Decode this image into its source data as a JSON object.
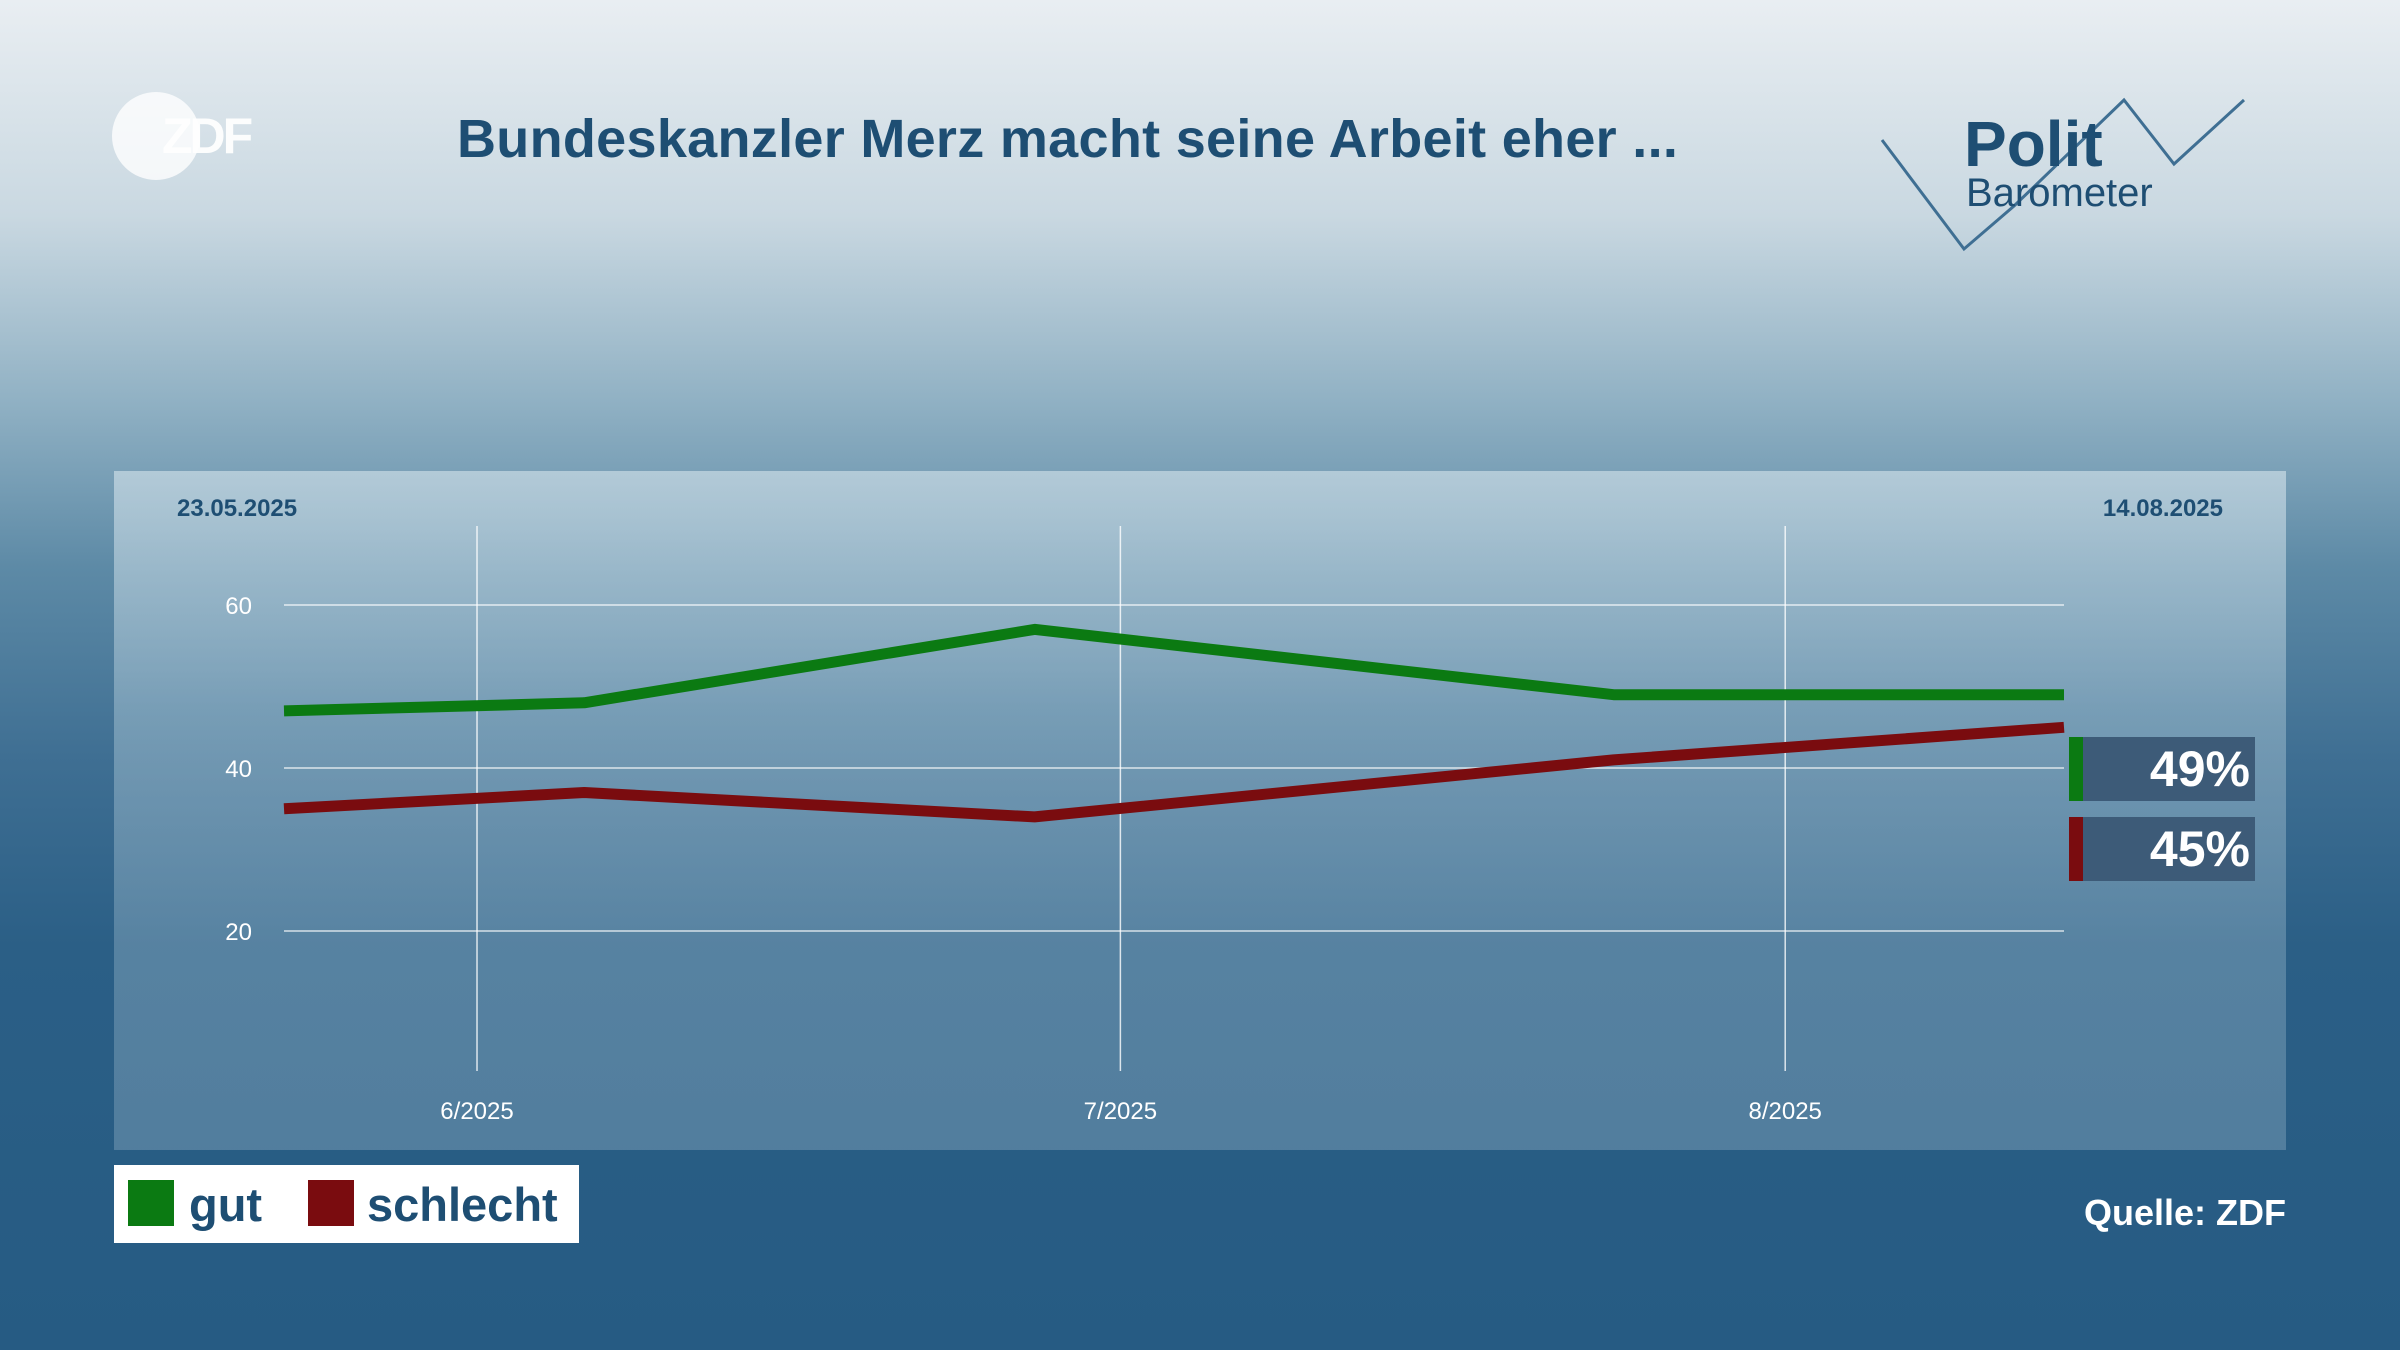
{
  "header": {
    "title": "Bundeskanzler Merz macht seine Arbeit eher ...",
    "zdf_logo_text": "ZDF",
    "polit_logo": {
      "word1": "Polit",
      "word2": "Barometer"
    }
  },
  "chart_data": {
    "type": "line",
    "title": "Bundeskanzler Merz macht seine Arbeit eher ...",
    "start_label": "23.05.2025",
    "end_label": "14.08.2025",
    "x": [
      "2025-05-23",
      "2025-06-06",
      "2025-06-27",
      "2025-07-24",
      "2025-08-14"
    ],
    "x_tick_labels": [
      "6/2025",
      "7/2025",
      "8/2025"
    ],
    "x_tick_dates": [
      "2025-06-01",
      "2025-07-01",
      "2025-08-01"
    ],
    "y_ticks": [
      20,
      40,
      60
    ],
    "ylim": [
      0,
      70
    ],
    "grid": true,
    "series": [
      {
        "name": "gut",
        "color": "#0b7a12",
        "values": [
          47,
          48,
          57,
          49,
          49
        ],
        "end_label": "49%"
      },
      {
        "name": "schlecht",
        "color": "#7a0c0f",
        "values": [
          35,
          37,
          34,
          41,
          45
        ],
        "end_label": "45%"
      }
    ],
    "legend_position": "bottom-left"
  },
  "legend": [
    {
      "label": "gut",
      "color": "#0b7a12"
    },
    {
      "label": "schlecht",
      "color": "#7a0c0f"
    }
  ],
  "footer": {
    "source": "Quelle: ZDF"
  }
}
